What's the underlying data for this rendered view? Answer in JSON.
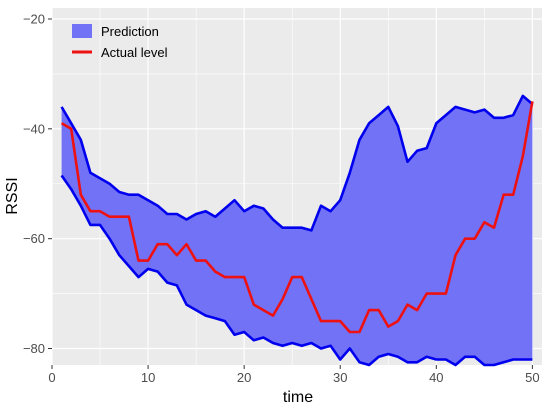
{
  "chart_data": {
    "type": "line",
    "xlabel": "time",
    "ylabel": "RSSI",
    "xlim": [
      0,
      51
    ],
    "ylim": [
      -83,
      -18
    ],
    "x_ticks": [
      0,
      10,
      20,
      30,
      40,
      50
    ],
    "y_ticks": [
      -80,
      -60,
      -40,
      -20
    ],
    "grid": true,
    "legend_position": "top-left",
    "x": [
      1,
      2,
      3,
      4,
      5,
      6,
      7,
      8,
      9,
      10,
      11,
      12,
      13,
      14,
      15,
      16,
      17,
      18,
      19,
      20,
      21,
      22,
      23,
      24,
      25,
      26,
      27,
      28,
      29,
      30,
      31,
      32,
      33,
      34,
      35,
      36,
      37,
      38,
      39,
      40,
      41,
      42,
      43,
      44,
      45,
      46,
      47,
      48,
      49,
      50
    ],
    "series": [
      {
        "name": "Prediction",
        "kind": "ribbon",
        "color": "#7272f7",
        "border_color": "#0000ee",
        "upper": [
          -36,
          -39,
          -42,
          -48,
          -49,
          -50,
          -51.5,
          -52,
          -52,
          -53,
          -54,
          -55.5,
          -55.5,
          -56.5,
          -55.5,
          -55,
          -56,
          -54.5,
          -53,
          -55,
          -54,
          -54.5,
          -56.5,
          -58,
          -58,
          -58,
          -58.5,
          -54,
          -55,
          -53,
          -48,
          -42,
          -39,
          -37.5,
          -36,
          -39.5,
          -46,
          -44,
          -43.5,
          -39,
          -37.5,
          -36,
          -36.5,
          -37,
          -36.5,
          -38,
          -38,
          -37.5,
          -34,
          -35.5
        ],
        "lower": [
          -48.5,
          -51,
          -54,
          -57.5,
          -57.5,
          -60,
          -63,
          -65,
          -67,
          -65.5,
          -66,
          -68,
          -68.5,
          -72,
          -73,
          -74,
          -74.5,
          -75,
          -77.5,
          -77,
          -78.5,
          -78,
          -79,
          -79.5,
          -79,
          -79.5,
          -79,
          -80,
          -79.5,
          -82,
          -80,
          -82.5,
          -83,
          -81.5,
          -81,
          -81.5,
          -82.5,
          -82.5,
          -81.5,
          -82,
          -82,
          -83,
          -81.5,
          -81.5,
          -83,
          -83,
          -82.5,
          -82,
          -82,
          -82
        ]
      },
      {
        "name": "Actual level",
        "kind": "line",
        "color": "#ee1111",
        "values": [
          -39,
          -40,
          -52,
          -55,
          -55,
          -56,
          -56,
          -56,
          -64,
          -64,
          -61,
          -61,
          -63,
          -61,
          -64,
          -64,
          -66,
          -67,
          -67,
          -67,
          -72,
          -73,
          -74,
          -71,
          -67,
          -67,
          -71,
          -75,
          -75,
          -75,
          -77,
          -77,
          -73,
          -73,
          -76,
          -75,
          -72,
          -73,
          -70,
          -70,
          -70,
          -63,
          -60,
          -60,
          -57,
          -58,
          -52,
          -52,
          -45,
          -35
        ]
      }
    ]
  }
}
